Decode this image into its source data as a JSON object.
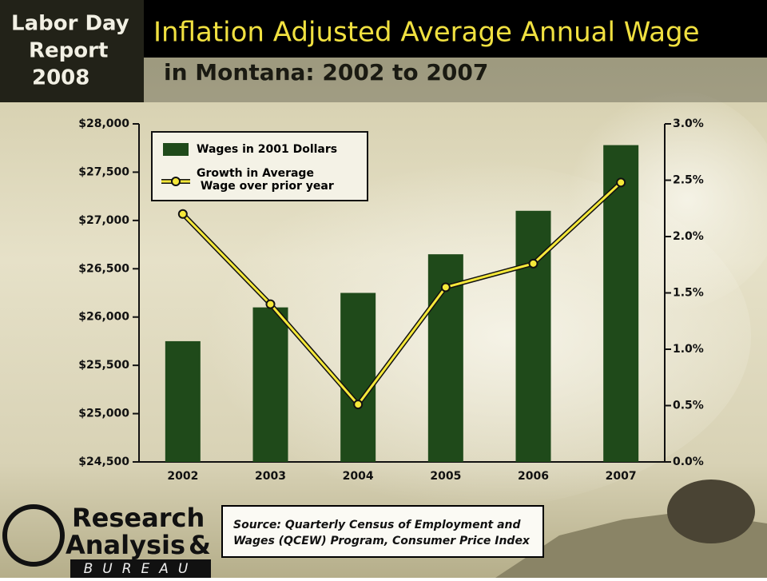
{
  "header_logo": [
    "Labor Day",
    "Report",
    "2008"
  ],
  "footer_logo": [
    "Research",
    "Analysis",
    "&",
    "BUREAU"
  ],
  "source": [
    "Source: Quarterly Census of Employment and",
    "Wages (QCEW) Program, Consumer Price Index"
  ],
  "chart_data": {
    "type": "bar_line",
    "title": "Inflation Adjusted Average Annual Wage",
    "subtitle": "in Montana: 2002 to 2007",
    "categories": [
      "2002",
      "2003",
      "2004",
      "2005",
      "2006",
      "2007"
    ],
    "series": [
      {
        "name": "Wages in 2001 Dollars",
        "type": "bar",
        "color": "#1f4a1a",
        "values": [
          25750,
          26100,
          26250,
          26650,
          27100,
          27780
        ]
      },
      {
        "name": "Growth in Average Wage over prior year",
        "type": "line",
        "axis": "y2",
        "color": "#f5e83a",
        "values": [
          2.2,
          1.4,
          0.51,
          1.55,
          1.76,
          2.48
        ]
      }
    ],
    "ylim": [
      24500,
      28000
    ],
    "yticks": [
      {
        "value": 24500,
        "label": "$24,500"
      },
      {
        "value": 25000,
        "label": "$25,000"
      },
      {
        "value": 25500,
        "label": "$25,500"
      },
      {
        "value": 26000,
        "label": "$26,000"
      },
      {
        "value": 26500,
        "label": "$26,500"
      },
      {
        "value": 27000,
        "label": "$27,000"
      },
      {
        "value": 27500,
        "label": "$27,500"
      },
      {
        "value": 28000,
        "label": "$28,000"
      }
    ],
    "y2lim": [
      0,
      3
    ],
    "y2ticks": [
      {
        "value": 0,
        "label": "0.0%"
      },
      {
        "value": 0.5,
        "label": "0.5%"
      },
      {
        "value": 1,
        "label": "1.0%"
      },
      {
        "value": 1.5,
        "label": "1.5%"
      },
      {
        "value": 2,
        "label": "2.0%"
      },
      {
        "value": 2.5,
        "label": "2.5%"
      },
      {
        "value": 3,
        "label": "3.0%"
      }
    ],
    "legend": "top-left"
  }
}
